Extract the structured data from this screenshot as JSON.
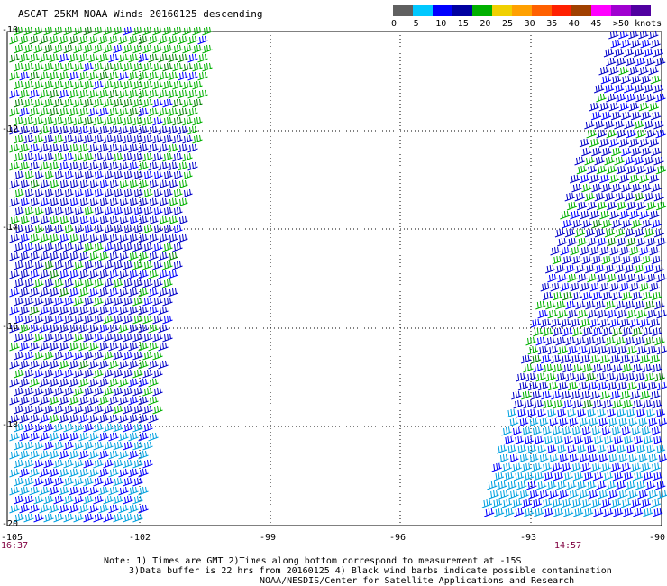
{
  "title": "ASCAT 25KM NOAA Winds 20160125 descending",
  "colorbar": {
    "colors": [
      "#606060",
      "#00c8ff",
      "#0000ff",
      "#0000a0",
      "#00b000",
      "#f0d000",
      "#ffa000",
      "#ff6000",
      "#ff2000",
      "#a04000",
      "#ff00ff",
      "#a000d0",
      "#5000a0"
    ],
    "labels": [
      "0",
      "5",
      "10",
      "15",
      "20",
      "25",
      "30",
      "35",
      "40",
      "45",
      ">50 knots"
    ]
  },
  "axes": {
    "y_labels": [
      "-10",
      "-12",
      "-14",
      "-16",
      "-18",
      "-20"
    ],
    "x_labels": [
      "-105",
      "-102",
      "-99",
      "-96",
      "-93",
      "-90"
    ]
  },
  "times": {
    "left": "16:37",
    "right": "14:57"
  },
  "notes": {
    "line1": "Note: 1) Times are GMT 2)Times along bottom correspond to measurement at -15S",
    "line2": "3)Data buffer is 22 hrs from 20160125 4) Black wind barbs indicate possible contamination",
    "line3": "NOAA/NESDIS/Center for Satellite Applications and Research"
  }
}
